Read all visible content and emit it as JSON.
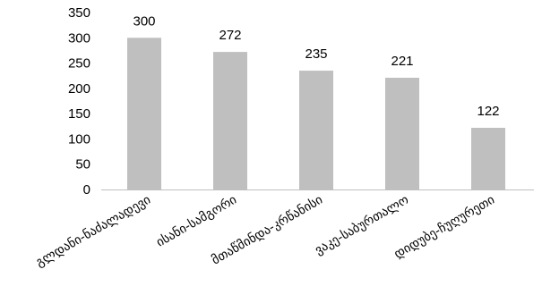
{
  "chart_data": {
    "type": "bar",
    "categories": [
      "გლდანი-ნაძალადევი",
      "ისანი-სამგორი",
      "მთაწმინდა-კრწანისი",
      "ვაკე-საბურთალო",
      "დიდუბე-ჩუღურეთი"
    ],
    "values": [
      300,
      272,
      235,
      221,
      122
    ],
    "data_labels": [
      "300",
      "272",
      "235",
      "221",
      "122"
    ],
    "yticks": [
      "0",
      "50",
      "100",
      "150",
      "200",
      "250",
      "300",
      "350"
    ],
    "ylim": [
      0,
      350
    ],
    "bar_color": "#bfbfbf",
    "axis_color": "#bfbfbf",
    "grid": false,
    "legend": "none"
  }
}
